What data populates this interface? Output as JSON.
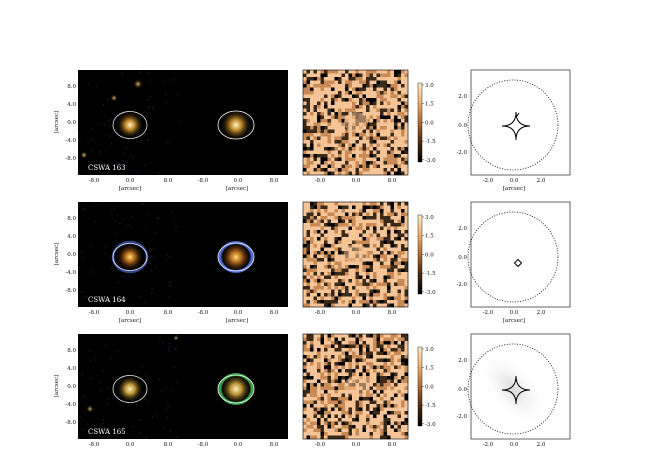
{
  "figure": {
    "rows": [
      {
        "name": "CSWA 163",
        "colors": {
          "core": "#fff6c8",
          "halo": "#e0a030",
          "ring": "#3a50c8"
        },
        "blue_ring": false,
        "critical_curve": "astroid",
        "source_blob": "none"
      },
      {
        "name": "CSWA 164",
        "colors": {
          "core": "#ffe070",
          "halo": "#d07a20",
          "ring": "#5a80ff"
        },
        "blue_ring": true,
        "critical_curve": "small-diamond",
        "source_blob": "none"
      },
      {
        "name": "CSWA 165",
        "colors": {
          "core": "#fff2c0",
          "halo": "#e0b040",
          "ring": "#40c050"
        },
        "blue_ring": false,
        "critical_curve": "astroid",
        "source_blob": "grey-elliptical"
      }
    ],
    "axis_label": "[arcsec]",
    "image_y_ticks": [
      "8.0",
      "4.0",
      "0.0",
      "-4.0",
      "-8.0"
    ],
    "image_x_ticks_a": [
      "-8.0",
      "0.0",
      "8.0"
    ],
    "image_x_ticks_b": [
      "-8.0",
      "0.0",
      "8.0"
    ],
    "residual_x_ticks": [
      "-8.0",
      "0.0",
      "8.0"
    ],
    "colorbar_ticks": [
      "3.0",
      "1.5",
      "0.0",
      "-1.5",
      "-3.0"
    ],
    "source_y_ticks": [
      "2.0",
      "0.0",
      "-2.0"
    ],
    "source_x_ticks": [
      "-2.0",
      "0.0",
      "2.0"
    ],
    "residual_colors": {
      "light": "#f5c497",
      "mid": "#c98a55",
      "dark": "#3a2a1a",
      "black": "#000000"
    },
    "colorbar_colors": [
      "#ffeec0",
      "#f0b070",
      "#b06a30",
      "#4a2a10",
      "#000000"
    ]
  }
}
